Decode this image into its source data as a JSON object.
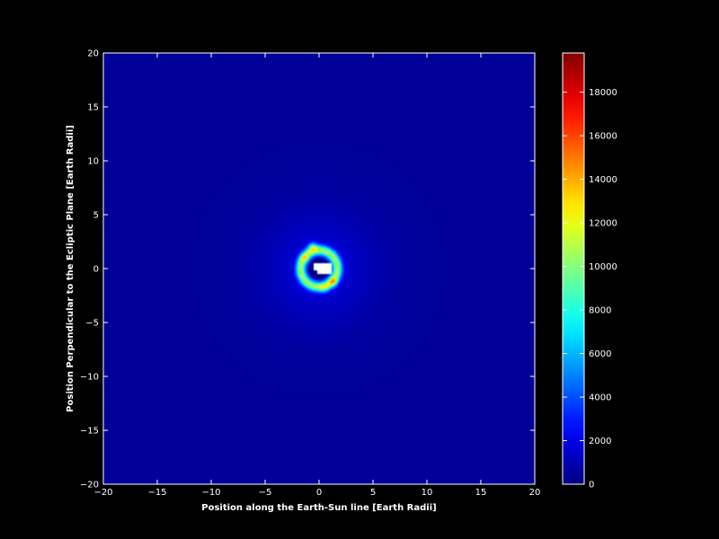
{
  "chart_data": {
    "type": "heatmap",
    "title": "",
    "xlabel": "Position along the Earth-Sun line [Earth Radii]",
    "ylabel": "Position Perpendicular to the Ecliptic Plane [Earth Radii]",
    "xlim": [
      -20,
      20
    ],
    "ylim": [
      -20,
      20
    ],
    "x_ticks": [
      -20,
      -15,
      -10,
      -5,
      0,
      5,
      10,
      15,
      20
    ],
    "y_ticks": [
      -20,
      -15,
      -10,
      -5,
      0,
      5,
      10,
      15,
      20
    ],
    "x_tick_labels": [
      "−20",
      "−15",
      "−10",
      "−5",
      "0",
      "5",
      "10",
      "15",
      "20"
    ],
    "y_tick_labels": [
      "−20",
      "−15",
      "−10",
      "−5",
      "0",
      "5",
      "10",
      "15",
      "20"
    ],
    "colormap": "jet",
    "background_value": 500,
    "colorbar": {
      "min": 0,
      "max": 19800,
      "ticks": [
        0,
        2000,
        4000,
        6000,
        8000,
        10000,
        12000,
        14000,
        16000,
        18000
      ],
      "tick_labels": [
        "0",
        "2000",
        "4000",
        "6000",
        "8000",
        "10000",
        "12000",
        "14000",
        "16000",
        "18000"
      ]
    },
    "features": {
      "core_mask_color": "#ffffff",
      "ring_inner_radius": 1.0,
      "ring_peak_radius": 1.7,
      "ring_peak_value": 9000,
      "halo_radius": 6,
      "hotspots": [
        {
          "x": -0.6,
          "y": 2.0,
          "value": 10500
        },
        {
          "x": 1.3,
          "y": -1.2,
          "value": 10000
        },
        {
          "x": -1.3,
          "y": 1.0,
          "value": 8500
        },
        {
          "x": 0.5,
          "y": -1.8,
          "value": 8000
        }
      ]
    }
  }
}
